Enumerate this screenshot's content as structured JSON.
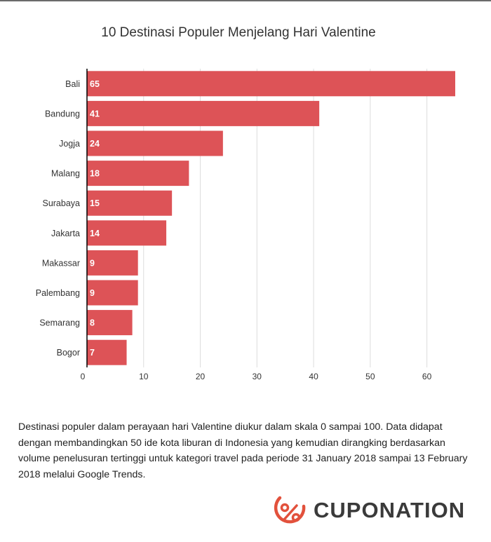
{
  "title": "10 Destinasi Populer Menjelang Hari Valentine",
  "caption": "Destinasi populer dalam perayaan hari Valentine diukur dalam skala 0 sampai 100. Data didapat dengan membandingkan 50 ide kota liburan di Indonesia yang kemudian dirangking berdasarkan volume penelusuran tertinggi untuk kategori travel pada  periode 31 January 2018 sampai 13 February 2018 melalui Google Trends.",
  "brand": {
    "name": "CUPONATION",
    "logo_icon": "percent-circle-icon",
    "accent_color": "#e2513c"
  },
  "colors": {
    "bar": "#dd5357",
    "grid": "#dcdcdc",
    "axis": "#000000",
    "label": "#333333",
    "value_label": "#ffffff"
  },
  "chart_data": {
    "type": "bar",
    "orientation": "horizontal",
    "title": "10 Destinasi Populer Menjelang Hari Valentine",
    "categories": [
      "Bali",
      "Bandung",
      "Jogja",
      "Malang",
      "Surabaya",
      "Jakarta",
      "Makassar",
      "Palembang",
      "Semarang",
      "Bogor"
    ],
    "values": [
      65,
      41,
      24,
      18,
      15,
      14,
      9,
      9,
      8,
      7
    ],
    "xlim": [
      0,
      65
    ],
    "xticks": [
      0,
      10,
      20,
      30,
      40,
      50,
      60
    ],
    "xlabel": "",
    "ylabel": "",
    "grid": true,
    "data_labels": true,
    "legend": "none"
  }
}
